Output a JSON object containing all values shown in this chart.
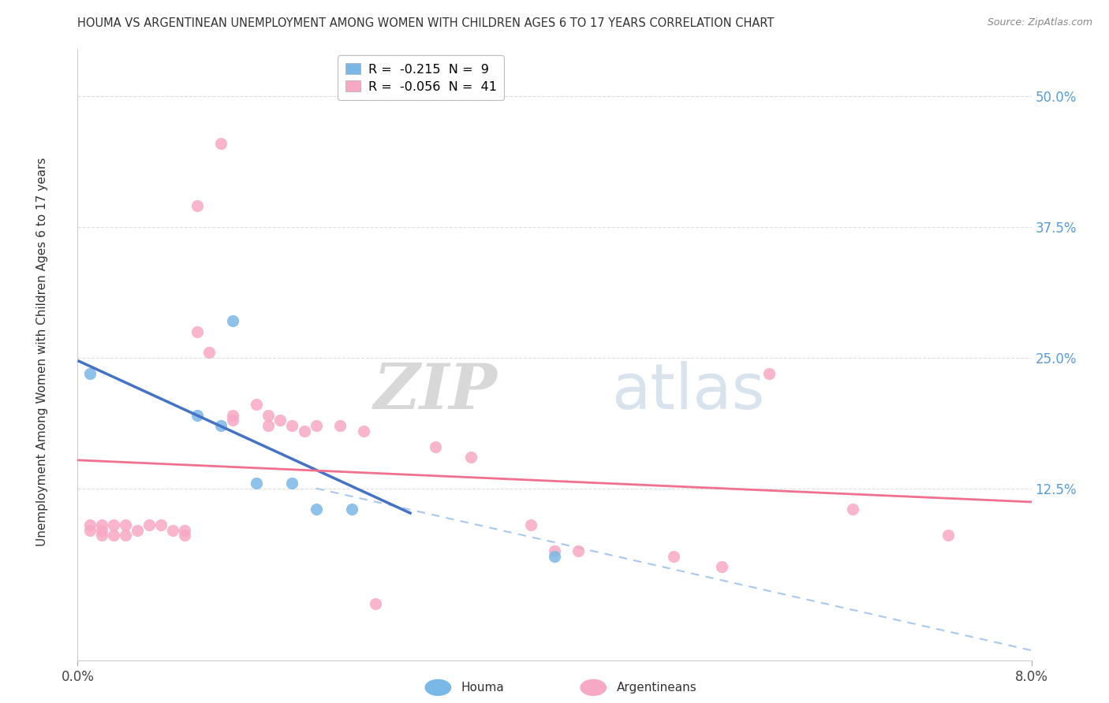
{
  "title": "HOUMA VS ARGENTINEAN UNEMPLOYMENT AMONG WOMEN WITH CHILDREN AGES 6 TO 17 YEARS CORRELATION CHART",
  "source": "Source: ZipAtlas.com",
  "ylabel": "Unemployment Among Women with Children Ages 6 to 17 years",
  "xlim": [
    0.0,
    0.08
  ],
  "ylim": [
    -0.04,
    0.545
  ],
  "houma_R": -0.215,
  "houma_N": 9,
  "argent_R": -0.056,
  "argent_N": 41,
  "houma_color": "#7ab8e8",
  "argent_color": "#f7a8c4",
  "houma_line_color": "#4472C4",
  "argent_line_color": "#F07090",
  "dashed_color": "#a8c8f0",
  "ytick_vals": [
    0.125,
    0.25,
    0.375,
    0.5
  ],
  "ytick_labels": [
    "12.5%",
    "25.0%",
    "37.5%",
    "50.0%"
  ],
  "houma_points": [
    [
      0.001,
      0.235
    ],
    [
      0.01,
      0.195
    ],
    [
      0.012,
      0.185
    ],
    [
      0.013,
      0.285
    ],
    [
      0.015,
      0.13
    ],
    [
      0.018,
      0.13
    ],
    [
      0.02,
      0.105
    ],
    [
      0.023,
      0.105
    ],
    [
      0.04,
      0.06
    ]
  ],
  "argent_points": [
    [
      0.001,
      0.09
    ],
    [
      0.001,
      0.085
    ],
    [
      0.002,
      0.09
    ],
    [
      0.002,
      0.085
    ],
    [
      0.002,
      0.08
    ],
    [
      0.003,
      0.09
    ],
    [
      0.003,
      0.08
    ],
    [
      0.004,
      0.09
    ],
    [
      0.004,
      0.08
    ],
    [
      0.005,
      0.085
    ],
    [
      0.006,
      0.09
    ],
    [
      0.007,
      0.09
    ],
    [
      0.008,
      0.085
    ],
    [
      0.009,
      0.085
    ],
    [
      0.009,
      0.08
    ],
    [
      0.01,
      0.395
    ],
    [
      0.01,
      0.275
    ],
    [
      0.011,
      0.255
    ],
    [
      0.012,
      0.455
    ],
    [
      0.013,
      0.195
    ],
    [
      0.013,
      0.19
    ],
    [
      0.015,
      0.205
    ],
    [
      0.016,
      0.195
    ],
    [
      0.016,
      0.185
    ],
    [
      0.017,
      0.19
    ],
    [
      0.018,
      0.185
    ],
    [
      0.019,
      0.18
    ],
    [
      0.02,
      0.185
    ],
    [
      0.022,
      0.185
    ],
    [
      0.024,
      0.18
    ],
    [
      0.025,
      0.015
    ],
    [
      0.03,
      0.165
    ],
    [
      0.033,
      0.155
    ],
    [
      0.038,
      0.09
    ],
    [
      0.04,
      0.065
    ],
    [
      0.042,
      0.065
    ],
    [
      0.05,
      0.06
    ],
    [
      0.054,
      0.05
    ],
    [
      0.058,
      0.235
    ],
    [
      0.065,
      0.105
    ],
    [
      0.073,
      0.08
    ]
  ]
}
